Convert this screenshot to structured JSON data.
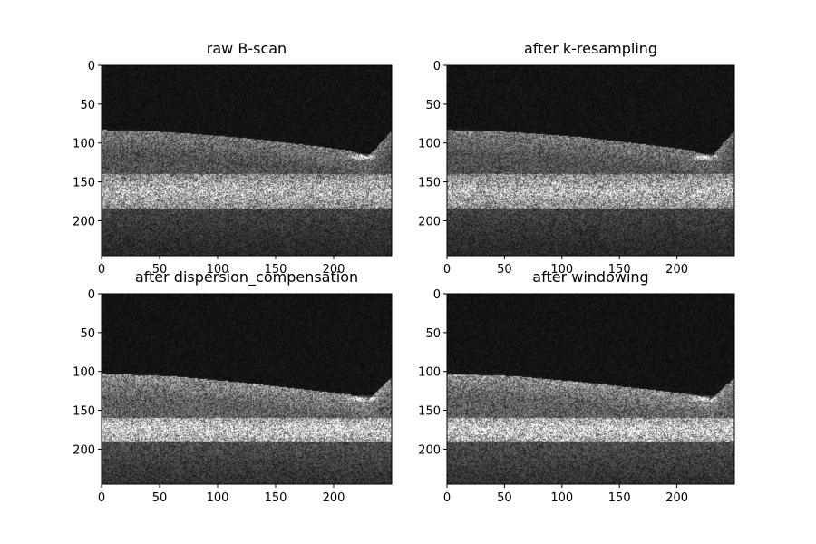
{
  "figure": {
    "background": "#ffffff",
    "colormap": "gray"
  },
  "chart_data": [
    {
      "type": "heatmap",
      "title": "raw B-scan",
      "xlim": [
        0,
        250
      ],
      "ylim": [
        245,
        0
      ],
      "xticks": [
        0,
        50,
        100,
        150,
        200
      ],
      "yticks": [
        0,
        50,
        100,
        150,
        200
      ],
      "bright_flat_band_rows": [
        140,
        185
      ],
      "surface_boundary": {
        "x": [
          0,
          60,
          120,
          180,
          215,
          230,
          250
        ],
        "y": [
          83,
          86,
          93,
          103,
          110,
          118,
          85
        ]
      },
      "specular_highlight": {
        "x": 225,
        "y": 118
      }
    },
    {
      "type": "heatmap",
      "title": "after k-resampling",
      "xlim": [
        0,
        250
      ],
      "ylim": [
        245,
        0
      ],
      "xticks": [
        0,
        50,
        100,
        150,
        200
      ],
      "yticks": [
        0,
        50,
        100,
        150,
        200
      ],
      "bright_flat_band_rows": [
        140,
        185
      ],
      "surface_boundary": {
        "x": [
          0,
          60,
          120,
          180,
          215,
          230,
          250
        ],
        "y": [
          83,
          86,
          93,
          103,
          110,
          118,
          85
        ]
      },
      "specular_highlight": {
        "x": 225,
        "y": 118
      }
    },
    {
      "type": "heatmap",
      "title": "after dispersion_compensation",
      "xlim": [
        0,
        250
      ],
      "ylim": [
        245,
        0
      ],
      "xticks": [
        0,
        50,
        100,
        150,
        200
      ],
      "yticks": [
        0,
        50,
        100,
        150,
        200
      ],
      "bright_flat_band_rows": [
        160,
        190
      ],
      "surface_boundary": {
        "x": [
          0,
          60,
          120,
          180,
          215,
          230,
          250
        ],
        "y": [
          103,
          106,
          114,
          124,
          130,
          137,
          108
        ]
      },
      "specular_highlight": {
        "x": 225,
        "y": 135
      }
    },
    {
      "type": "heatmap",
      "title": "after windowing",
      "xlim": [
        0,
        250
      ],
      "ylim": [
        245,
        0
      ],
      "xticks": [
        0,
        50,
        100,
        150,
        200
      ],
      "yticks": [
        0,
        50,
        100,
        150,
        200
      ],
      "bright_flat_band_rows": [
        160,
        190
      ],
      "surface_boundary": {
        "x": [
          0,
          60,
          120,
          180,
          215,
          230,
          250
        ],
        "y": [
          103,
          106,
          114,
          124,
          130,
          137,
          108
        ]
      },
      "specular_highlight": {
        "x": 225,
        "y": 135
      }
    }
  ]
}
